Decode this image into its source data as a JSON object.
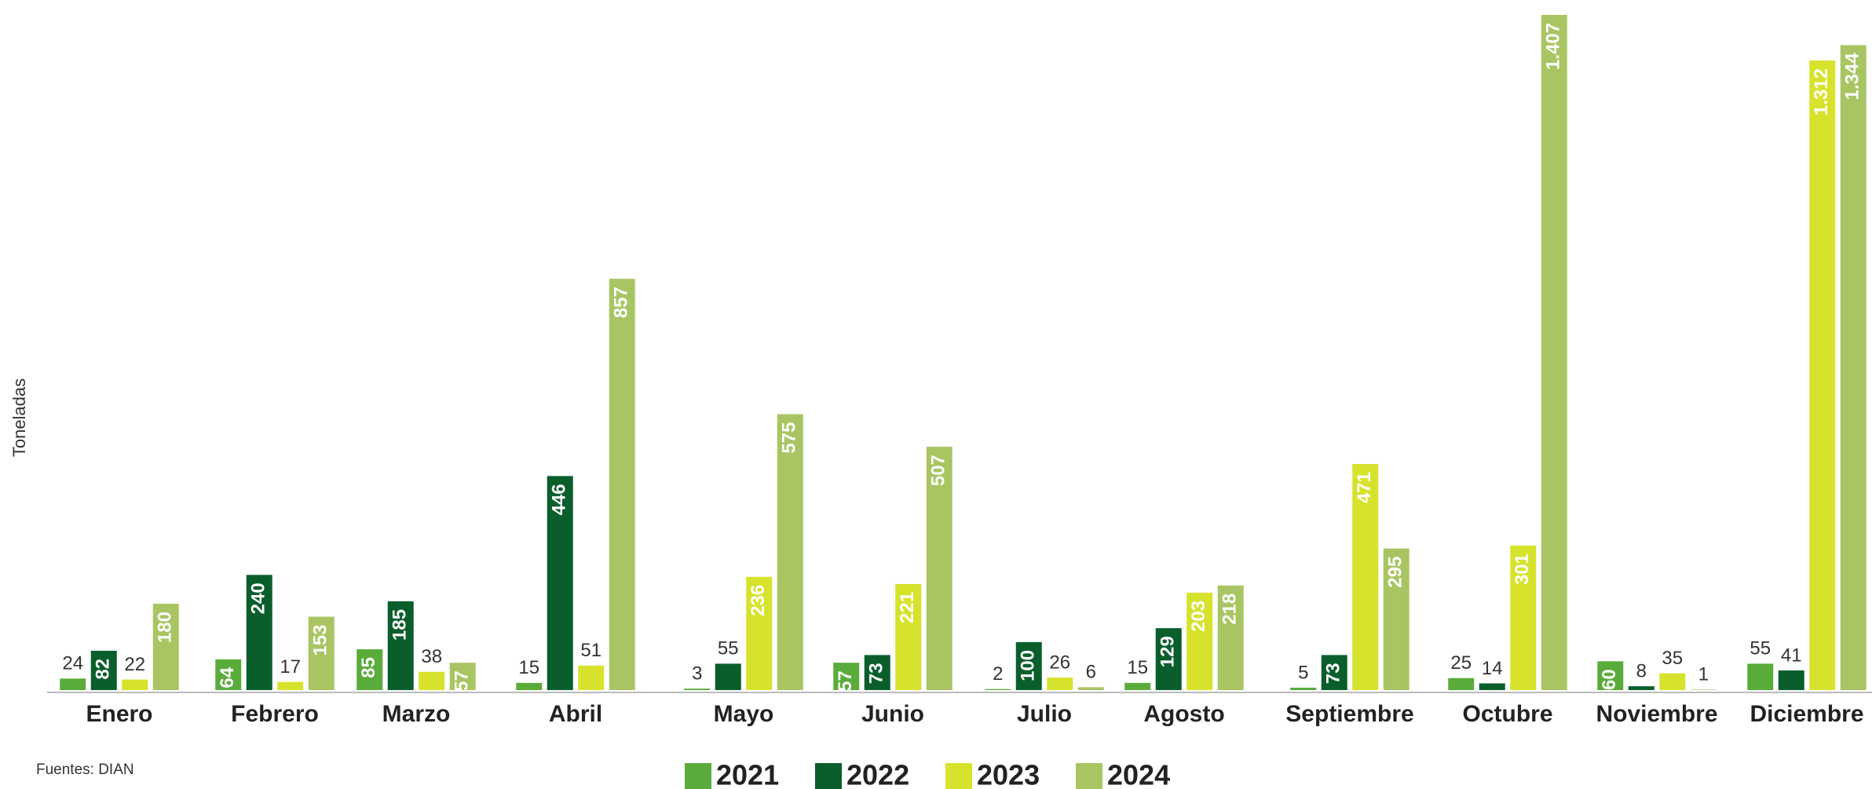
{
  "chart_data": {
    "type": "bar",
    "y_label": "Toneladas",
    "source": "Fuentes: DIAN",
    "categories": [
      "Enero",
      "Febrero",
      "Marzo",
      "Abril",
      "Mayo",
      "Junio",
      "Julio",
      "Agosto",
      "Septiembre",
      "Octubre",
      "Noviembre",
      "Diciembre"
    ],
    "series": [
      {
        "name": "2021",
        "color": "#5aac3a",
        "values": [
          24,
          64,
          85,
          15,
          3,
          57,
          2,
          15,
          5,
          25,
          60,
          55
        ]
      },
      {
        "name": "2022",
        "color": "#0a5e2c",
        "values": [
          82,
          240,
          185,
          446,
          55,
          73,
          100,
          129,
          73,
          14,
          8,
          41
        ]
      },
      {
        "name": "2023",
        "color": "#d7e22c",
        "values": [
          22,
          17,
          38,
          51,
          236,
          221,
          26,
          203,
          471,
          301,
          35,
          1312
        ],
        "value_labels": [
          "22",
          "17",
          "38",
          "51",
          "236",
          "221",
          "26",
          "203",
          "471",
          "301",
          "35",
          "1.312"
        ]
      },
      {
        "name": "2024",
        "color": "#a9c563",
        "values": [
          180,
          153,
          57,
          857,
          575,
          507,
          6,
          218,
          295,
          1407,
          1,
          1344
        ],
        "value_labels": [
          "180",
          "153",
          "57",
          "857",
          "575",
          "507",
          "6",
          "218",
          "295",
          "1.407",
          "1",
          "1.344"
        ]
      }
    ],
    "ylim": [
      0,
      1420
    ]
  }
}
